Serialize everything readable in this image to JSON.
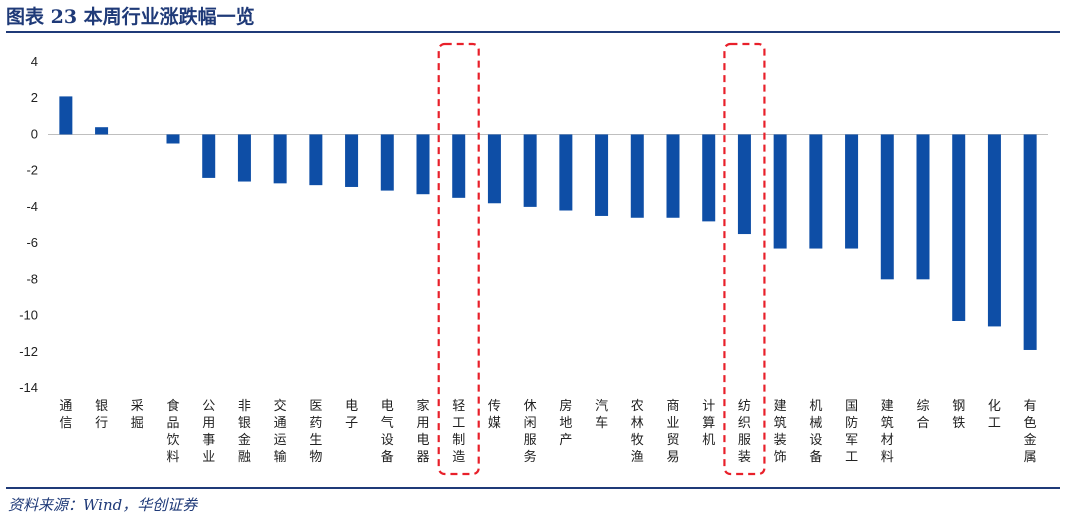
{
  "header": {
    "title": "图表 23   本周行业涨跌幅一览"
  },
  "footer": {
    "source": "资料来源：Wind，华创证券"
  },
  "colors": {
    "bar": "#0e4ea6",
    "axis": "#bfbfbf",
    "highlight": "#e8202a",
    "rule": "#1f3a78"
  },
  "chart_data": {
    "type": "bar",
    "title": "本周行业涨跌幅一览",
    "ylim": [
      -14,
      4
    ],
    "yticks": [
      4,
      2,
      0,
      -2,
      -4,
      -6,
      -8,
      -10,
      -12,
      -14
    ],
    "grid": false,
    "categories": [
      "通信",
      "银行",
      "采掘",
      "食品饮料",
      "公用事业",
      "非银金融",
      "交通运输",
      "医药生物",
      "电子",
      "电气设备",
      "家用电器",
      "轻工制造",
      "传媒",
      "休闲服务",
      "房地产",
      "汽车",
      "农林牧渔",
      "商业贸易",
      "计算机",
      "纺织服装",
      "建筑装饰",
      "机械设备",
      "国防军工",
      "建筑材料",
      "综合",
      "钢铁",
      "化工",
      "有色金属"
    ],
    "values": [
      2.1,
      0.4,
      0.0,
      -0.5,
      -2.4,
      -2.6,
      -2.7,
      -2.8,
      -2.9,
      -3.1,
      -3.3,
      -3.5,
      -3.8,
      -4.0,
      -4.2,
      -4.5,
      -4.6,
      -4.6,
      -4.8,
      -5.5,
      -6.3,
      -6.3,
      -6.3,
      -8.0,
      -8.0,
      -10.3,
      -10.6,
      -11.9
    ],
    "highlighted": [
      "轻工制造",
      "纺织服装"
    ]
  }
}
